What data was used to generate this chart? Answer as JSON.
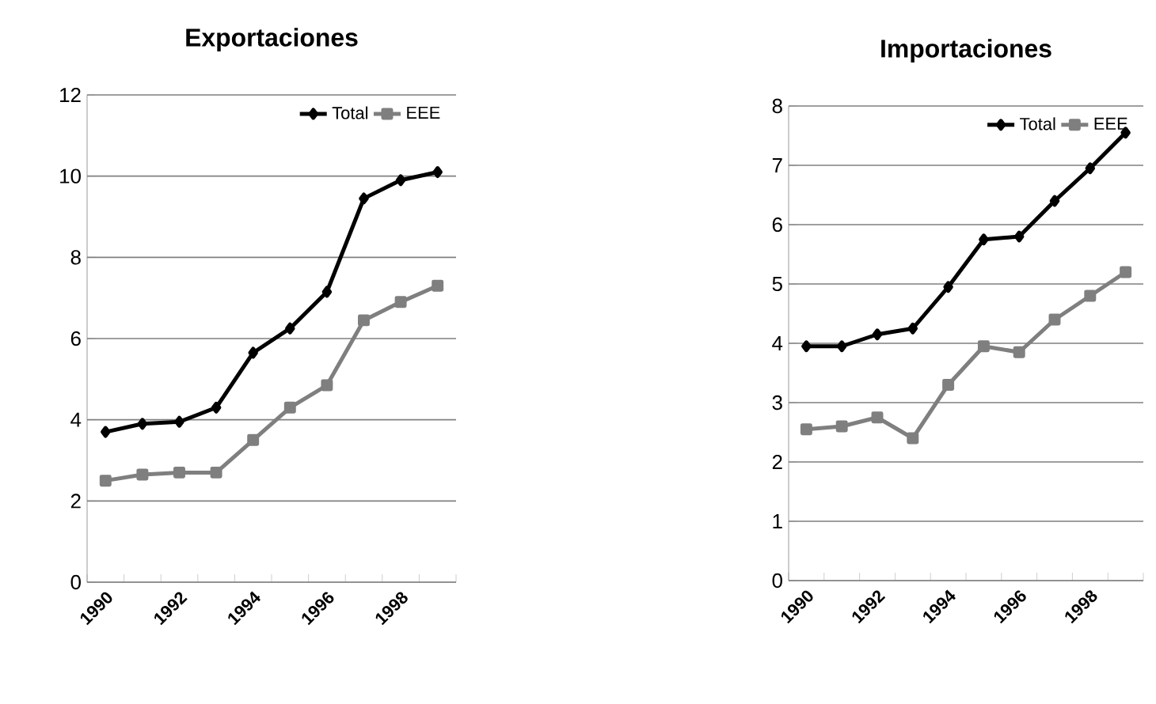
{
  "chart_data": [
    {
      "type": "line",
      "title": "Exportaciones",
      "categories": [
        "1990",
        null,
        "1992",
        null,
        "1994",
        null,
        "1996",
        null,
        "1998",
        null
      ],
      "ylim": [
        0,
        12
      ],
      "yticks": [
        0,
        2,
        4,
        6,
        8,
        10,
        12
      ],
      "grid": "y",
      "legend": "top right",
      "line_style": "solid",
      "series": [
        {
          "name": "Total",
          "color": "#000000",
          "marker": "diamond",
          "values": [
            3.7,
            3.9,
            3.95,
            4.3,
            5.65,
            6.25,
            7.15,
            9.45,
            9.9,
            10.1
          ]
        },
        {
          "name": "EEE",
          "color": "#7f7f7f",
          "marker": "square",
          "values": [
            2.5,
            2.65,
            2.7,
            2.7,
            3.5,
            4.3,
            4.85,
            6.45,
            6.9,
            7.3
          ]
        }
      ]
    },
    {
      "type": "line",
      "title": "Importaciones",
      "categories": [
        "1990",
        null,
        "1992",
        null,
        "1994",
        null,
        "1996",
        null,
        "1998",
        null
      ],
      "ylim": [
        0,
        8
      ],
      "yticks": [
        0,
        1,
        2,
        3,
        4,
        5,
        6,
        7,
        8
      ],
      "grid": "y",
      "legend": "top right",
      "line_style": "solid",
      "series": [
        {
          "name": "Total",
          "color": "#000000",
          "marker": "diamond",
          "values": [
            3.95,
            3.95,
            4.15,
            4.25,
            4.95,
            5.75,
            5.8,
            6.4,
            6.95,
            7.55
          ]
        },
        {
          "name": "EEE",
          "color": "#7f7f7f",
          "marker": "square",
          "values": [
            2.55,
            2.6,
            2.75,
            2.4,
            3.3,
            3.95,
            3.85,
            4.4,
            4.8,
            5.2
          ]
        }
      ]
    }
  ]
}
